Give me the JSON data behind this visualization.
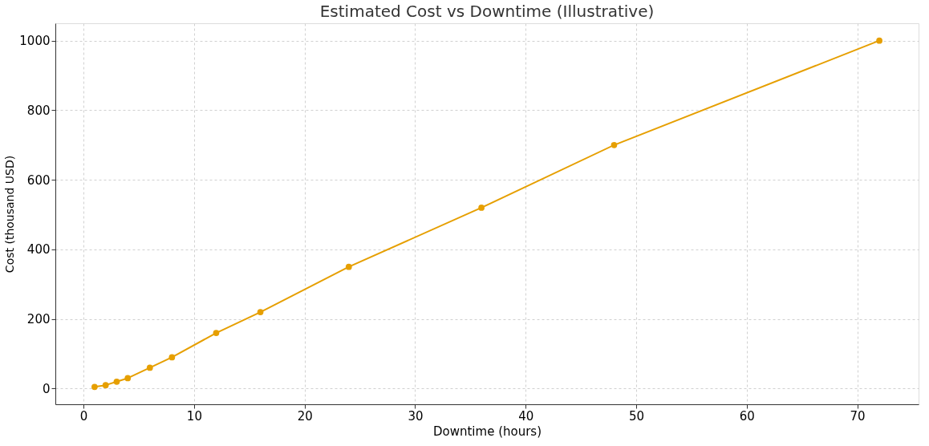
{
  "chart_data": {
    "type": "line",
    "title": "Estimated Cost vs Downtime (Illustrative)",
    "xlabel": "Downtime (hours)",
    "ylabel": "Cost (thousand USD)",
    "x": [
      1,
      2,
      3,
      4,
      6,
      8,
      12,
      16,
      24,
      36,
      48,
      72
    ],
    "series": [
      {
        "color": "#e69f00",
        "values": [
          5,
          10,
          20,
          30,
          60,
          90,
          160,
          220,
          350,
          520,
          700,
          1000
        ]
      }
    ],
    "xlim": [
      -2.55,
      75.55
    ],
    "ylim": [
      -45,
      1050
    ],
    "xticks": [
      0,
      10,
      20,
      30,
      40,
      50,
      60,
      70
    ],
    "yticks": [
      0,
      200,
      400,
      600,
      800,
      1000
    ],
    "grid": true,
    "marker": "circle",
    "line_style": "solid"
  }
}
